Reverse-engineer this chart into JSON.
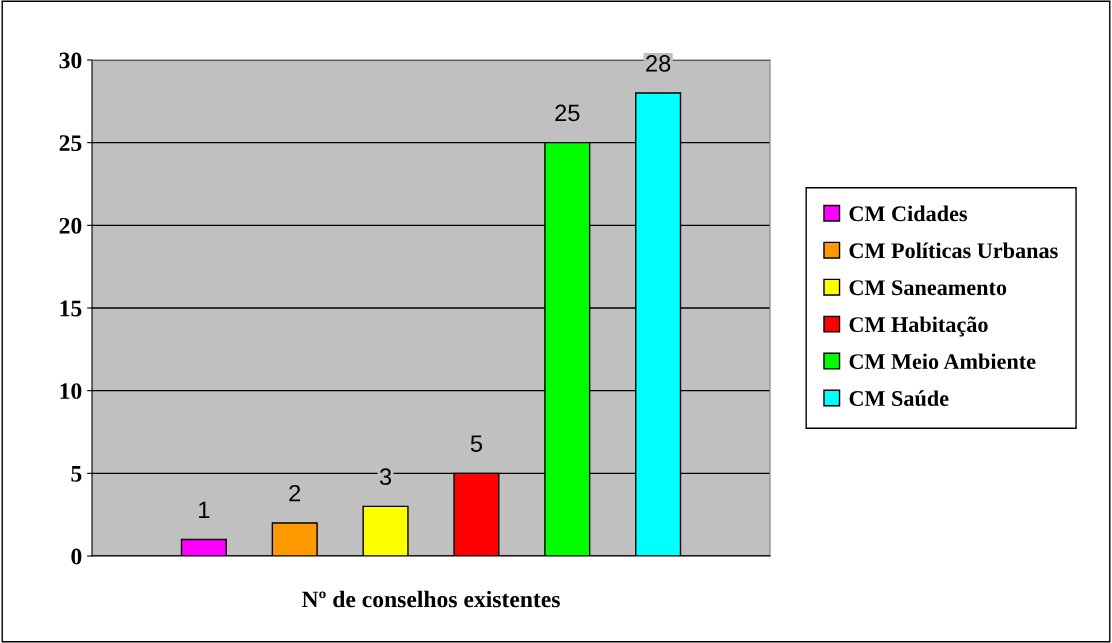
{
  "chart_data": {
    "type": "bar",
    "categories": [
      "Nº de conselhos existentes"
    ],
    "series": [
      {
        "name": "CM Cidades",
        "color": "#ff00ff",
        "values": [
          1
        ]
      },
      {
        "name": "CM Políticas Urbanas",
        "color": "#ff9900",
        "values": [
          2
        ]
      },
      {
        "name": "CM Saneamento",
        "color": "#ffff00",
        "values": [
          3
        ]
      },
      {
        "name": "CM Habitação",
        "color": "#ff0000",
        "values": [
          5
        ]
      },
      {
        "name": "CM Meio Ambiente",
        "color": "#00ff00",
        "values": [
          25
        ]
      },
      {
        "name": "CM Saúde",
        "color": "#00ffff",
        "values": [
          28
        ]
      }
    ],
    "ylim": [
      0,
      30
    ],
    "yticks": [
      0,
      5,
      10,
      15,
      20,
      25,
      30
    ],
    "grid": "y",
    "legend": "right",
    "data_labels": true
  }
}
